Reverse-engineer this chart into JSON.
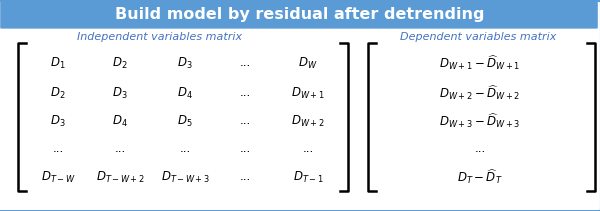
{
  "title": "Build model by residual after detrending",
  "title_bg_color": "#5B9BD5",
  "title_text_color": "#FFFFFF",
  "label_left": "Independent variables matrix",
  "label_right": "Dependent variables matrix",
  "label_color": "#4472C4",
  "bg_color": "#FFFFFF",
  "border_color": "#5B9BD5",
  "matrix_left_rows": [
    [
      "$D_1$",
      "$D_2$",
      "$D_3$",
      "...",
      "$D_W$"
    ],
    [
      "$D_2$",
      "$D_3$",
      "$D_4$",
      "...",
      "$D_{W+1}$"
    ],
    [
      "$D_3$",
      "$D_4$",
      "$D_5$",
      "...",
      "$D_{W+2}$"
    ],
    [
      "...",
      "...",
      "...",
      "...",
      "..."
    ],
    [
      "$D_{T-W}$",
      "$D_{T-W+2}$",
      "$D_{T-W+3}$",
      "...",
      "$D_{T-1}$"
    ]
  ],
  "matrix_right_rows": [
    "$D_{W+1} - \\widehat{D}_{W+1}$",
    "$D_{W+2} - \\widehat{D}_{W+2}$",
    "$D_{W+3} - \\widehat{D}_{W+3}$",
    "...",
    "$D_T - \\widehat{D}_T$"
  ],
  "figsize": [
    6.0,
    2.11
  ],
  "dpi": 100
}
